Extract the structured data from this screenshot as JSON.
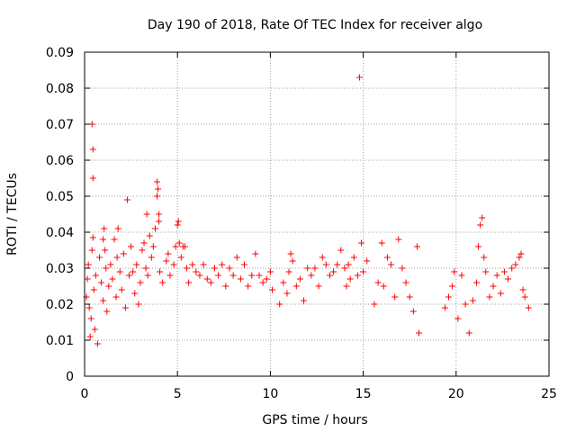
{
  "chart_data": {
    "type": "scatter",
    "title": "Day 190 of 2018, Rate Of TEC Index for receiver algo",
    "xlabel": "GPS time / hours",
    "ylabel": "ROTI / TECUs",
    "xlim": [
      0,
      25
    ],
    "ylim": [
      0,
      0.09
    ],
    "x_ticks": [
      "0",
      "5",
      "10",
      "15",
      "20",
      "25"
    ],
    "y_ticks": [
      "0",
      "0.01",
      "0.02",
      "0.03",
      "0.04",
      "0.05",
      "0.06",
      "0.07",
      "0.08",
      "0.09"
    ],
    "grid": true,
    "legend": "none",
    "marker": "+",
    "series_color": "#ff0000",
    "series": [
      {
        "points": [
          [
            0.1,
            0.022
          ],
          [
            0.15,
            0.027
          ],
          [
            0.2,
            0.031
          ],
          [
            0.25,
            0.019
          ],
          [
            0.3,
            0.011
          ],
          [
            0.35,
            0.016
          ],
          [
            0.4,
            0.035
          ],
          [
            0.45,
            0.0385
          ],
          [
            0.45,
            0.063
          ],
          [
            0.4,
            0.07
          ],
          [
            0.45,
            0.055
          ],
          [
            0.5,
            0.024
          ],
          [
            0.55,
            0.013
          ],
          [
            0.6,
            0.028
          ],
          [
            0.7,
            0.009
          ],
          [
            0.8,
            0.033
          ],
          [
            0.9,
            0.026
          ],
          [
            1.0,
            0.021
          ],
          [
            1.0,
            0.038
          ],
          [
            1.05,
            0.041
          ],
          [
            1.1,
            0.035
          ],
          [
            1.15,
            0.03
          ],
          [
            1.2,
            0.018
          ],
          [
            1.3,
            0.025
          ],
          [
            1.4,
            0.031
          ],
          [
            1.5,
            0.027
          ],
          [
            1.6,
            0.038
          ],
          [
            1.7,
            0.022
          ],
          [
            1.75,
            0.033
          ],
          [
            1.8,
            0.041
          ],
          [
            1.9,
            0.029
          ],
          [
            2.0,
            0.024
          ],
          [
            2.1,
            0.034
          ],
          [
            2.2,
            0.019
          ],
          [
            2.3,
            0.049
          ],
          [
            2.4,
            0.028
          ],
          [
            2.5,
            0.036
          ],
          [
            2.6,
            0.029
          ],
          [
            2.7,
            0.023
          ],
          [
            2.8,
            0.031
          ],
          [
            2.9,
            0.02
          ],
          [
            3.0,
            0.026
          ],
          [
            3.1,
            0.035
          ],
          [
            3.2,
            0.037
          ],
          [
            3.3,
            0.03
          ],
          [
            3.35,
            0.045
          ],
          [
            3.4,
            0.028
          ],
          [
            3.5,
            0.039
          ],
          [
            3.6,
            0.033
          ],
          [
            3.7,
            0.036
          ],
          [
            3.8,
            0.041
          ],
          [
            3.9,
            0.05
          ],
          [
            3.9,
            0.054
          ],
          [
            3.95,
            0.052
          ],
          [
            4.0,
            0.045
          ],
          [
            4.0,
            0.043
          ],
          [
            4.05,
            0.029
          ],
          [
            4.2,
            0.026
          ],
          [
            4.4,
            0.032
          ],
          [
            4.5,
            0.034
          ],
          [
            4.6,
            0.028
          ],
          [
            4.8,
            0.031
          ],
          [
            4.9,
            0.036
          ],
          [
            5.0,
            0.042
          ],
          [
            5.05,
            0.043
          ],
          [
            5.1,
            0.037
          ],
          [
            5.2,
            0.033
          ],
          [
            5.3,
            0.036
          ],
          [
            5.4,
            0.036
          ],
          [
            5.5,
            0.03
          ],
          [
            5.6,
            0.026
          ],
          [
            5.8,
            0.031
          ],
          [
            6.0,
            0.029
          ],
          [
            6.2,
            0.028
          ],
          [
            6.4,
            0.031
          ],
          [
            6.6,
            0.027
          ],
          [
            6.8,
            0.026
          ],
          [
            7.0,
            0.03
          ],
          [
            7.2,
            0.028
          ],
          [
            7.4,
            0.031
          ],
          [
            7.6,
            0.025
          ],
          [
            7.8,
            0.03
          ],
          [
            8.0,
            0.028
          ],
          [
            8.2,
            0.033
          ],
          [
            8.4,
            0.027
          ],
          [
            8.6,
            0.031
          ],
          [
            8.8,
            0.025
          ],
          [
            9.0,
            0.028
          ],
          [
            9.2,
            0.034
          ],
          [
            9.4,
            0.028
          ],
          [
            9.6,
            0.026
          ],
          [
            9.8,
            0.027
          ],
          [
            10.0,
            0.029
          ],
          [
            10.1,
            0.024
          ],
          [
            10.5,
            0.02
          ],
          [
            10.7,
            0.026
          ],
          [
            10.9,
            0.023
          ],
          [
            11.0,
            0.029
          ],
          [
            11.1,
            0.034
          ],
          [
            11.2,
            0.032
          ],
          [
            11.4,
            0.025
          ],
          [
            11.6,
            0.027
          ],
          [
            11.8,
            0.021
          ],
          [
            12.0,
            0.03
          ],
          [
            12.2,
            0.028
          ],
          [
            12.4,
            0.03
          ],
          [
            12.6,
            0.025
          ],
          [
            12.8,
            0.033
          ],
          [
            13.0,
            0.031
          ],
          [
            13.2,
            0.028
          ],
          [
            13.4,
            0.029
          ],
          [
            13.6,
            0.031
          ],
          [
            13.8,
            0.035
          ],
          [
            14.0,
            0.03
          ],
          [
            14.1,
            0.025
          ],
          [
            14.2,
            0.031
          ],
          [
            14.3,
            0.027
          ],
          [
            14.5,
            0.033
          ],
          [
            14.7,
            0.028
          ],
          [
            14.8,
            0.083
          ],
          [
            14.9,
            0.037
          ],
          [
            15.0,
            0.029
          ],
          [
            15.2,
            0.032
          ],
          [
            15.6,
            0.02
          ],
          [
            15.8,
            0.026
          ],
          [
            16.0,
            0.037
          ],
          [
            16.1,
            0.025
          ],
          [
            16.3,
            0.033
          ],
          [
            16.5,
            0.031
          ],
          [
            16.7,
            0.022
          ],
          [
            16.9,
            0.038
          ],
          [
            17.1,
            0.03
          ],
          [
            17.3,
            0.026
          ],
          [
            17.5,
            0.022
          ],
          [
            17.7,
            0.018
          ],
          [
            17.9,
            0.036
          ],
          [
            18.0,
            0.012
          ],
          [
            19.4,
            0.019
          ],
          [
            19.6,
            0.022
          ],
          [
            19.8,
            0.025
          ],
          [
            19.9,
            0.029
          ],
          [
            20.1,
            0.016
          ],
          [
            20.3,
            0.028
          ],
          [
            20.5,
            0.02
          ],
          [
            20.7,
            0.012
          ],
          [
            20.9,
            0.021
          ],
          [
            21.1,
            0.026
          ],
          [
            21.2,
            0.036
          ],
          [
            21.3,
            0.042
          ],
          [
            21.4,
            0.044
          ],
          [
            21.5,
            0.033
          ],
          [
            21.6,
            0.029
          ],
          [
            21.8,
            0.022
          ],
          [
            22.0,
            0.025
          ],
          [
            22.2,
            0.028
          ],
          [
            22.4,
            0.023
          ],
          [
            22.6,
            0.029
          ],
          [
            22.8,
            0.027
          ],
          [
            23.0,
            0.03
          ],
          [
            23.2,
            0.031
          ],
          [
            23.4,
            0.033
          ],
          [
            23.5,
            0.034
          ],
          [
            23.6,
            0.024
          ],
          [
            23.7,
            0.022
          ],
          [
            23.9,
            0.019
          ]
        ]
      }
    ]
  }
}
